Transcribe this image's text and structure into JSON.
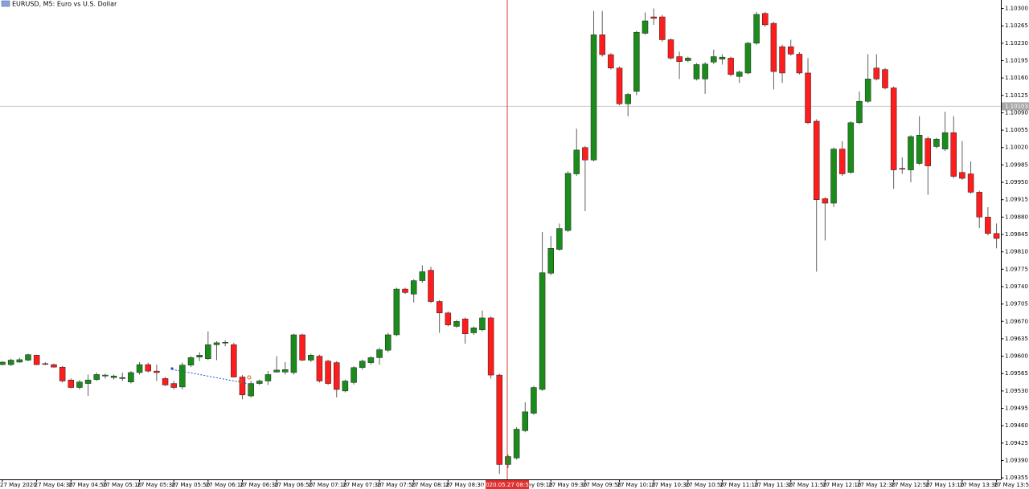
{
  "chart_data": {
    "type": "candlestick",
    "title": "EURUSD, M5: Euro vs U.S. Dollar",
    "categories": [
      "27 May 2020",
      null,
      null,
      null,
      "27 May 04:30",
      null,
      null,
      null,
      "27 May 04:50",
      null,
      null,
      null,
      "27 May 05:10",
      null,
      null,
      null,
      "27 May 05:30",
      null,
      null,
      null,
      "27 May 05:50",
      null,
      null,
      null,
      "27 May 06:10",
      null,
      null,
      null,
      "27 May 06:30",
      null,
      null,
      null,
      "27 May 06:50",
      null,
      null,
      null,
      "27 May 07:10",
      null,
      null,
      null,
      "27 May 07:30",
      null,
      null,
      null,
      "27 May 07:50",
      null,
      null,
      null,
      "27 May 08:10",
      null,
      null,
      null,
      "27 May 08:30",
      null,
      null,
      null,
      null,
      null,
      null,
      null,
      "27 May 09:10",
      null,
      null,
      null,
      "27 May 09:30",
      null,
      null,
      null,
      "27 May 09:50",
      null,
      null,
      null,
      "27 May 10:10",
      null,
      null,
      null,
      "27 May 10:30",
      null,
      null,
      null,
      "27 May 10:50",
      null,
      null,
      null,
      "27 May 11:10",
      null,
      null,
      null,
      "27 May 11:30",
      null,
      null,
      null,
      "27 May 11:50",
      null,
      null,
      null,
      "27 May 12:10",
      null,
      null,
      null,
      "27 May 12:30",
      null,
      null,
      null,
      "27 May 12:50",
      null,
      null,
      null,
      "27 May 13:10",
      null,
      null,
      null,
      "27 May 13:30",
      null,
      null,
      null,
      "27 May 13:50"
    ],
    "open": [
      1.09583,
      1.09583,
      1.09588,
      1.09592,
      1.09602,
      1.09585,
      1.09583,
      1.09578,
      1.09552,
      1.09537,
      1.09545,
      1.09553,
      1.0956,
      1.09557,
      1.09555,
      1.09548,
      1.09567,
      1.09583,
      1.0957,
      1.09555,
      1.09545,
      1.09538,
      1.09582,
      1.09598,
      1.09595,
      1.09623,
      1.09627,
      1.09623,
      1.09558,
      1.0952,
      1.09545,
      1.0955,
      1.09568,
      1.09568,
      1.09567,
      1.09643,
      1.09592,
      1.096,
      1.0959,
      1.09587,
      1.0953,
      1.09547,
      1.09577,
      1.09587,
      1.09597,
      1.09612,
      1.09643,
      1.09735,
      1.09725,
      1.09752,
      1.09773,
      1.0971,
      1.09687,
      1.0966,
      1.09675,
      1.09647,
      1.09653,
      1.09677,
      1.09562,
      1.09382,
      1.09395,
      1.0945,
      1.09485,
      1.09533,
      1.09767,
      1.09815,
      1.09853,
      1.09967,
      1.1002,
      1.09995,
      1.10247,
      1.10207,
      1.1018,
      1.10108,
      1.10133,
      1.1025,
      1.10283,
      1.10283,
      1.10237,
      1.10203,
      1.10195,
      1.10158,
      1.10158,
      1.10192,
      1.10198,
      1.102,
      1.10163,
      1.1017,
      1.1023,
      1.1029,
      1.1027,
      1.10223,
      1.10223,
      1.10208,
      1.1017,
      1.10073,
      1.09917,
      1.09908,
      1.10017,
      1.0997,
      1.1007,
      1.10113,
      1.1018,
      1.10177,
      1.1014,
      1.09978,
      1.09975,
      1.09988,
      1.10038,
      1.10022,
      1.10017,
      1.1005,
      1.0997,
      1.09967,
      1.0993,
      1.0988,
      1.09847
    ],
    "high": [
      1.0959,
      1.09595,
      1.09597,
      1.09605,
      1.09603,
      1.09588,
      1.09585,
      1.0958,
      1.09555,
      1.09552,
      1.09563,
      1.09567,
      1.09565,
      1.09563,
      1.09567,
      1.0957,
      1.09588,
      1.09587,
      1.09583,
      1.09558,
      1.0955,
      1.09587,
      1.096,
      1.09608,
      1.0965,
      1.0963,
      1.09632,
      1.09627,
      1.09562,
      1.0955,
      1.09553,
      1.0957,
      1.096,
      1.09588,
      1.09645,
      1.09645,
      1.09605,
      1.09603,
      1.09593,
      1.0959,
      1.09553,
      1.0958,
      1.09593,
      1.096,
      1.09617,
      1.09647,
      1.09738,
      1.09738,
      1.09755,
      1.09783,
      1.0978,
      1.09713,
      1.0969,
      1.09673,
      1.09678,
      1.0966,
      1.09692,
      1.0968,
      1.09565,
      1.09402,
      1.09457,
      1.09507,
      1.0954,
      1.0985,
      1.09842,
      1.09867,
      1.09972,
      1.10058,
      1.10023,
      1.10295,
      1.10295,
      1.1021,
      1.10183,
      1.1013,
      1.10255,
      1.10292,
      1.103,
      1.10287,
      1.1024,
      1.10213,
      1.10203,
      1.1019,
      1.10192,
      1.10217,
      1.10208,
      1.10203,
      1.10175,
      1.10233,
      1.10293,
      1.10293,
      1.10273,
      1.10227,
      1.10237,
      1.10212,
      1.102,
      1.10077,
      1.0992,
      1.1002,
      1.10033,
      1.10073,
      1.10133,
      1.10208,
      1.10208,
      1.1018,
      1.10143,
      1.1,
      1.10045,
      1.10083,
      1.10042,
      1.1004,
      1.10092,
      1.10083,
      1.10033,
      1.09992,
      1.09933,
      1.099,
      1.09867
    ],
    "low": [
      1.09582,
      1.0958,
      1.09587,
      1.0959,
      1.09582,
      1.09582,
      1.09577,
      1.09547,
      1.09535,
      1.09533,
      1.0952,
      1.0955,
      1.09555,
      1.09553,
      1.0955,
      1.09545,
      1.09563,
      1.09567,
      1.0955,
      1.0954,
      1.09533,
      1.09533,
      1.09578,
      1.0959,
      1.09592,
      1.09592,
      1.0962,
      1.09557,
      1.09513,
      1.09517,
      1.09542,
      1.09542,
      1.09567,
      1.09563,
      1.09563,
      1.0959,
      1.09588,
      1.09547,
      1.09542,
      1.09517,
      1.09527,
      1.09543,
      1.09573,
      1.09583,
      1.09583,
      1.09608,
      1.0964,
      1.09725,
      1.09708,
      1.09748,
      1.09707,
      1.09647,
      1.0966,
      1.09657,
      1.09625,
      1.09643,
      1.0965,
      1.09555,
      1.09363,
      1.09375,
      1.09392,
      1.09447,
      1.09482,
      1.0953,
      1.09763,
      1.09812,
      1.0985,
      1.09963,
      1.09892,
      1.09992,
      1.10203,
      1.10177,
      1.10105,
      1.10083,
      1.10125,
      1.10247,
      1.10267,
      1.10233,
      1.10197,
      1.10158,
      1.10192,
      1.10155,
      1.10128,
      1.10188,
      1.10187,
      1.10163,
      1.1015,
      1.10167,
      1.10227,
      1.10263,
      1.10137,
      1.1015,
      1.10205,
      1.10167,
      1.10067,
      1.0977,
      1.09833,
      1.099,
      1.09963,
      1.09967,
      1.10067,
      1.1011,
      1.10155,
      1.10137,
      1.09937,
      1.09967,
      1.0995,
      1.09985,
      1.09925,
      1.10018,
      1.10013,
      1.09958,
      1.09955,
      1.09927,
      1.09858,
      1.09843,
      1.09817
    ],
    "close": [
      1.09588,
      1.09592,
      1.09593,
      1.09603,
      1.09583,
      1.09584,
      1.09578,
      1.0955,
      1.09537,
      1.09548,
      1.09552,
      1.09563,
      1.09562,
      1.0956,
      1.09557,
      1.09567,
      1.09583,
      1.0957,
      1.09567,
      1.09542,
      1.09537,
      1.09582,
      1.09597,
      1.09602,
      1.09623,
      1.09627,
      1.09628,
      1.09558,
      1.09522,
      1.09545,
      1.0955,
      1.09563,
      1.09572,
      1.09573,
      1.09643,
      1.09592,
      1.09602,
      1.0955,
      1.09545,
      1.09533,
      1.0955,
      1.09577,
      1.0959,
      1.09597,
      1.09613,
      1.09643,
      1.09735,
      1.09728,
      1.09752,
      1.0977,
      1.0971,
      1.09687,
      1.09663,
      1.0967,
      1.09645,
      1.09657,
      1.09677,
      1.09562,
      1.09382,
      1.09398,
      1.09453,
      1.09488,
      1.09537,
      1.09768,
      1.09817,
      1.09857,
      1.09968,
      1.10015,
      1.09995,
      1.10247,
      1.10207,
      1.1018,
      1.10108,
      1.10127,
      1.10252,
      1.10275,
      1.1028,
      1.10237,
      1.102,
      1.10193,
      1.102,
      1.10187,
      1.10188,
      1.10203,
      1.10202,
      1.10167,
      1.10172,
      1.1023,
      1.10288,
      1.10267,
      1.10173,
      1.1017,
      1.10208,
      1.1017,
      1.1007,
      1.09915,
      1.09908,
      1.10017,
      1.09967,
      1.1007,
      1.10113,
      1.10158,
      1.10158,
      1.1014,
      1.09975,
      1.09977,
      1.10042,
      1.10045,
      1.09983,
      1.10037,
      1.1005,
      1.09962,
      1.09958,
      1.0993,
      1.0988,
      1.09847,
      1.09837
    ],
    "up_color": "#1a8c1a",
    "down_color": "#ff1c1c",
    "ylim": [
      1.09352,
      1.10317
    ],
    "yticks": [
      1.09355,
      {
        "value": 1.0939,
        "label": "1.09390"
      },
      1.09425,
      {
        "value": 1.0946,
        "label": "1.09460"
      },
      1.09495,
      {
        "value": 1.0953,
        "label": "1.09530"
      },
      1.09565,
      {
        "value": 1.096,
        "label": "1.09600"
      },
      1.09635,
      {
        "value": 1.0967,
        "label": "1.09670"
      },
      1.09705,
      {
        "value": 1.0974,
        "label": "1.09740"
      },
      1.09775,
      {
        "value": 1.0981,
        "label": "1.09810"
      },
      1.09845,
      {
        "value": 1.0988,
        "label": "1.09880"
      },
      1.09915,
      {
        "value": 1.0995,
        "label": "1.09950"
      },
      1.09985,
      {
        "value": 1.1002,
        "label": "1.10020"
      },
      1.10055,
      {
        "value": 1.1009,
        "label": "1.10090"
      },
      1.10125,
      {
        "value": 1.1016,
        "label": "1.10160"
      },
      1.10195,
      {
        "value": 1.1023,
        "label": "1.10230"
      },
      1.10265,
      {
        "value": 1.103,
        "label": "1.10300"
      }
    ],
    "current_price": 1.10103,
    "crosshair_time": "2020.05.27 08:55",
    "grid": false
  }
}
